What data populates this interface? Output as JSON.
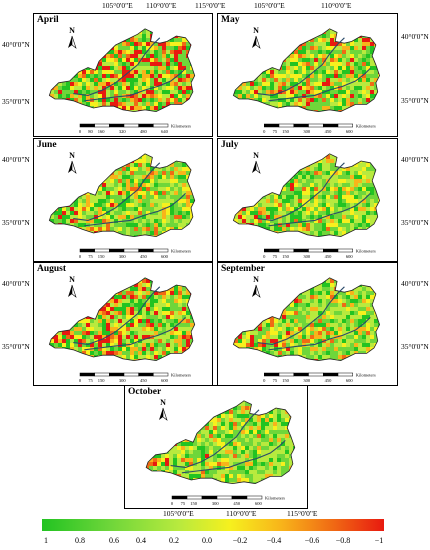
{
  "top_lon_labels": [
    "105°0'0\"E",
    "110°0'0\"E",
    "115°0'0\"E",
    "105°0'0\"E",
    "110°0'0\"E"
  ],
  "bottom_lon_labels": [
    "105°0'0\"E",
    "110°0'0\"E",
    "115°0'0\"E"
  ],
  "lat_labels": [
    "40°0'0\"N",
    "35°0'0\"N"
  ],
  "panels": [
    {
      "title": "April",
      "scale": [
        "0",
        "80",
        "160",
        "320",
        "480",
        "640"
      ],
      "unit": "Kilometers"
    },
    {
      "title": "May",
      "scale": [
        "0",
        "75",
        "150",
        "300",
        "450",
        "600"
      ],
      "unit": "Kilometers"
    },
    {
      "title": "June",
      "scale": [
        "0",
        "75",
        "150",
        "300",
        "450",
        "600"
      ],
      "unit": "Kilometers"
    },
    {
      "title": "July",
      "scale": [
        "0",
        "75",
        "150",
        "300",
        "450",
        "600"
      ],
      "unit": "Kilometers"
    },
    {
      "title": "August",
      "scale": [
        "0",
        "75",
        "150",
        "300",
        "450",
        "600"
      ],
      "unit": "Kilometers"
    },
    {
      "title": "September",
      "scale": [
        "0",
        "75",
        "150",
        "300",
        "450",
        "600"
      ],
      "unit": "Kilometers"
    },
    {
      "title": "October",
      "scale": [
        "0",
        "75",
        "150",
        "300",
        "450",
        "600"
      ],
      "unit": "Kilometers"
    }
  ],
  "north_label": "N",
  "legend": {
    "ticks": [
      "1",
      "0.8",
      "0.6",
      "0.4",
      "0.2",
      "0.0",
      "−0.2",
      "−0.4",
      "−0.6",
      "−0.8",
      "−1"
    ],
    "colors": [
      "#22c322",
      "#6fd63a",
      "#b8ea3e",
      "#f6f01e",
      "#f8b41a",
      "#f06a14",
      "#e81a10"
    ]
  }
}
